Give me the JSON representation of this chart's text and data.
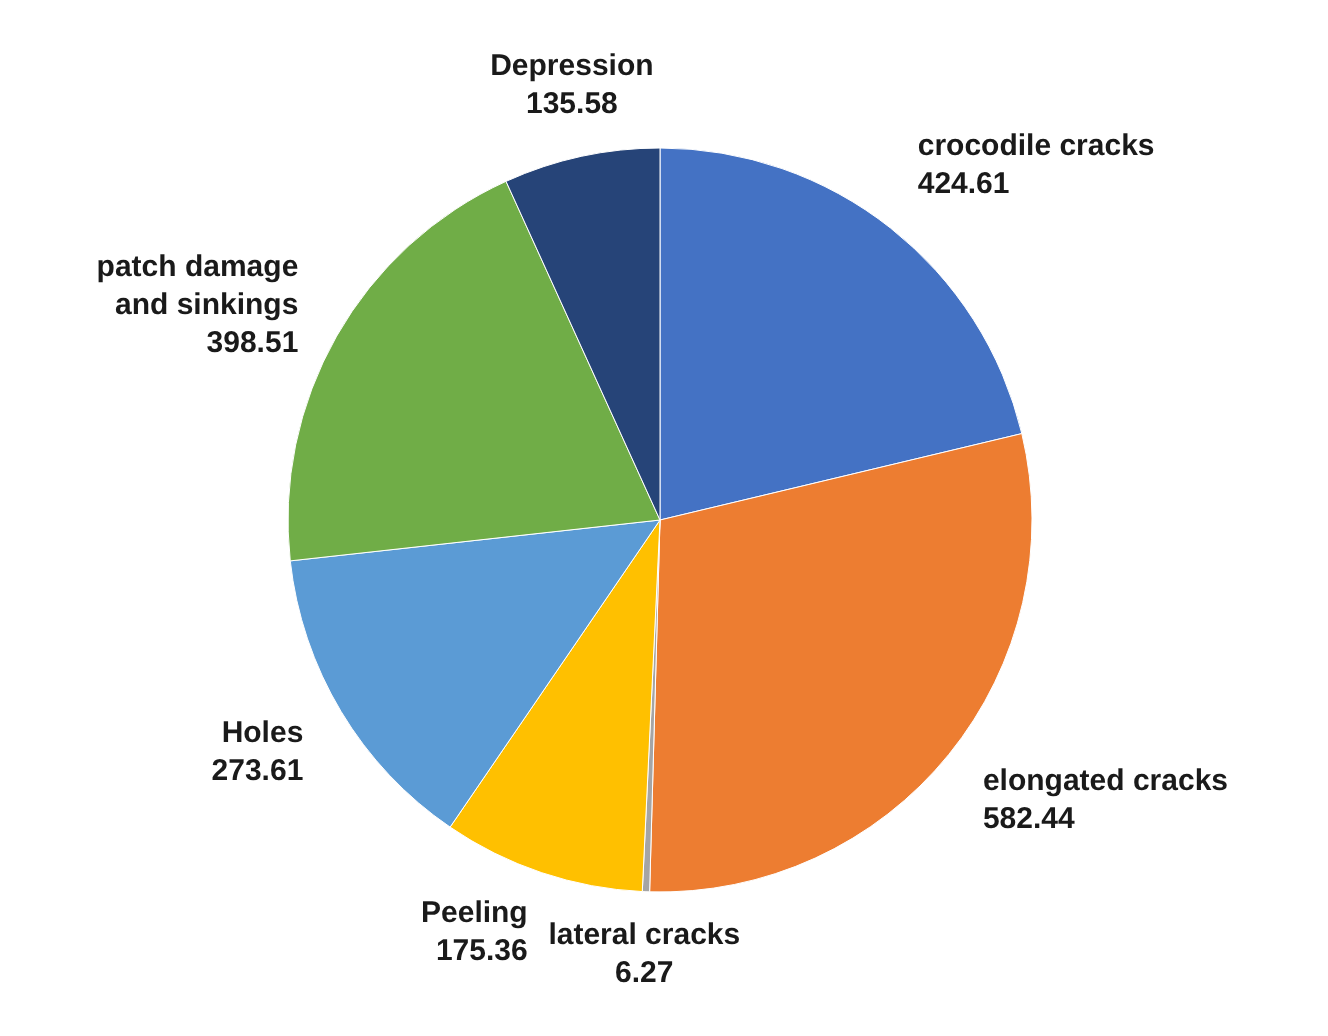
{
  "chart_data": {
    "type": "pie",
    "categories": [
      "crocodile cracks",
      "elongated cracks",
      "lateral cracks",
      "Peeling",
      "Holes",
      "patch damage and sinkings",
      "Depression"
    ],
    "values": [
      424.61,
      582.44,
      6.27,
      175.36,
      273.61,
      398.51,
      135.58
    ],
    "colors": [
      "#4472c4",
      "#ed7d31",
      "#a5a5a5",
      "#ffc000",
      "#5b9bd5",
      "#70ad47",
      "#264478"
    ],
    "data_labels": true
  }
}
